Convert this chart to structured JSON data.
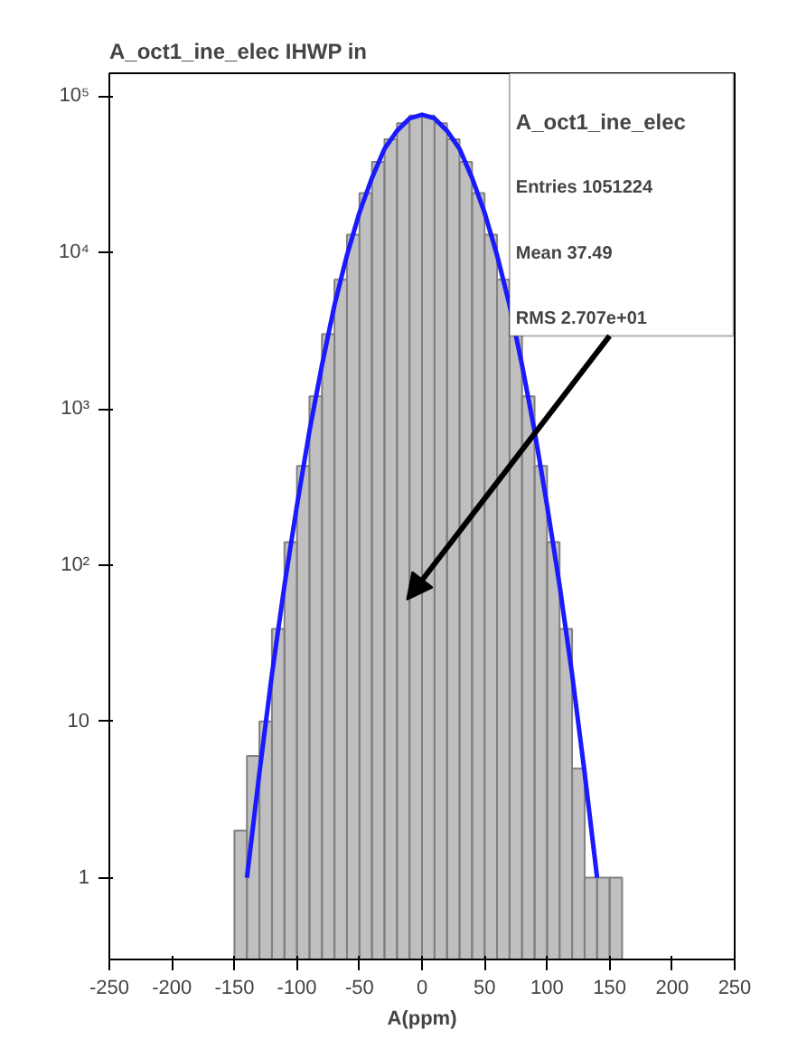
{
  "chart_data": {
    "type": "histogram",
    "title": "A_oct1_ine_elec IHWP in",
    "xlabel": "A(ppm)",
    "bins": [
      -150,
      -140,
      -130,
      -120,
      -110,
      -100,
      -90,
      -80,
      -70,
      -60,
      -50,
      -40,
      -30,
      -20,
      -10,
      0,
      10,
      20,
      30,
      40,
      50,
      60,
      70,
      80,
      90,
      100,
      110,
      120,
      130,
      140,
      150,
      160
    ],
    "values": [
      2,
      6,
      10,
      39,
      140,
      430,
      1200,
      3000,
      6700,
      13000,
      24000,
      38000,
      53000,
      67000,
      75000,
      75000,
      67000,
      53000,
      38000,
      24000,
      13000,
      6700,
      3000,
      1200,
      430,
      140,
      39,
      5,
      1,
      1,
      1
    ],
    "color": "#808080",
    "series": [
      {
        "type": "line",
        "color": "#1a1aff",
        "x": [
          -140,
          -130,
          -120,
          -110,
          -100,
          -90,
          -80,
          -70,
          -60,
          -50,
          -40,
          -30,
          -20,
          -10,
          0,
          10,
          20,
          30,
          40,
          50,
          60,
          70,
          80,
          90,
          100,
          110,
          120,
          130,
          140
        ],
        "values": [
          1,
          4.7,
          20,
          74,
          240,
          720,
          1900,
          4600,
          9600,
          18000,
          30000,
          46000,
          60000,
          72000,
          76000,
          72000,
          60000,
          46000,
          30000,
          18000,
          9600,
          4600,
          1900,
          720,
          240,
          74,
          20,
          4.7,
          1
        ]
      }
    ],
    "log": "y",
    "grid": false,
    "xlim": [
      -250,
      250
    ],
    "ylim": [
      0.3,
      140000
    ],
    "xticks": [
      -250,
      -200,
      -150,
      -100,
      -50,
      0,
      50,
      100,
      150,
      200,
      250
    ],
    "yticks": [
      1,
      10,
      {
        "value": 100,
        "label": "10²"
      },
      {
        "value": 1000,
        "label": "10³"
      },
      {
        "value": 10000,
        "label": "10⁴"
      },
      {
        "value": 100000,
        "label": "10⁵"
      }
    ],
    "annotations": [
      "A_oct1_ine_elec",
      "Entries 1051224",
      "Mean 37.49",
      "RMS 2.707e+01"
    ]
  }
}
